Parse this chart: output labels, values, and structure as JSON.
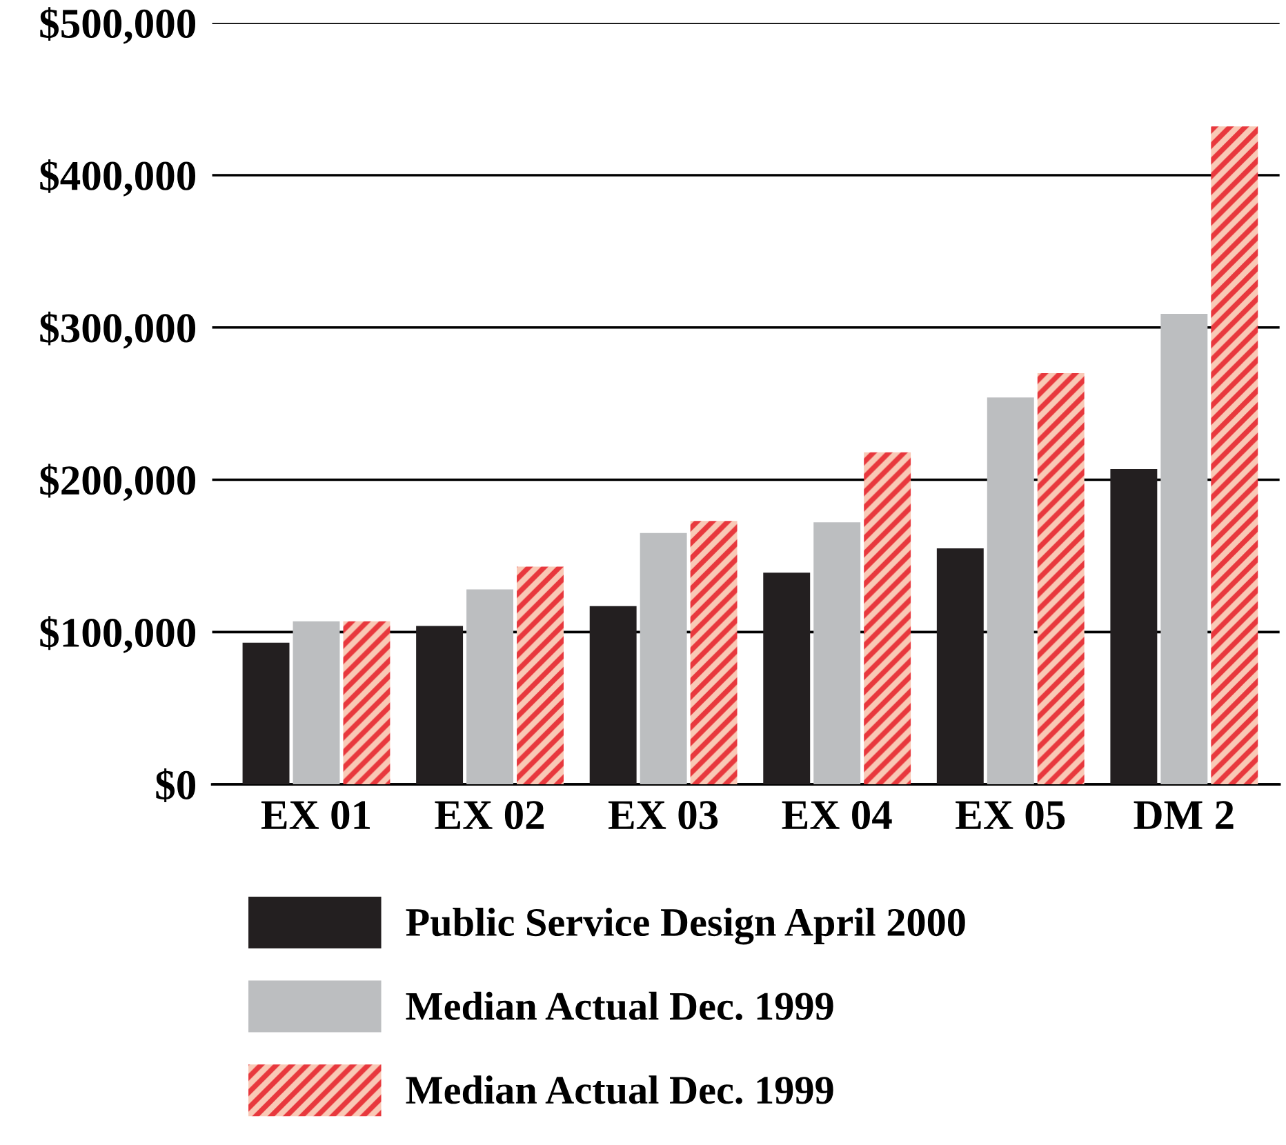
{
  "chart_data": {
    "type": "bar",
    "categories": [
      "EX 01",
      "EX 02",
      "EX 03",
      "EX 04",
      "EX 05",
      "DM 2"
    ],
    "series": [
      {
        "name": "Public Service Design April 2000",
        "color": "#231f20",
        "values": [
          93000,
          104000,
          117000,
          139000,
          155000,
          207000
        ]
      },
      {
        "name": "Median Actual Dec. 1999",
        "color": "#bcbec0",
        "values": [
          107000,
          128000,
          165000,
          172000,
          254000,
          309000
        ]
      },
      {
        "name": "Median Actual Dec. 1999",
        "color": "#e8383d",
        "values": [
          107000,
          143000,
          173000,
          218000,
          270000,
          432000
        ]
      }
    ],
    "ylim": [
      0,
      500000
    ],
    "yticks": [
      {
        "value": 0,
        "label": "$0"
      },
      {
        "value": 100000,
        "label": "$100,000"
      },
      {
        "value": 200000,
        "label": "$200,000"
      },
      {
        "value": 300000,
        "label": "$300,000"
      },
      {
        "value": 400000,
        "label": "$400,000"
      },
      {
        "value": 500000,
        "label": "$500,000"
      }
    ],
    "grid": "y",
    "legend": "bottom"
  }
}
